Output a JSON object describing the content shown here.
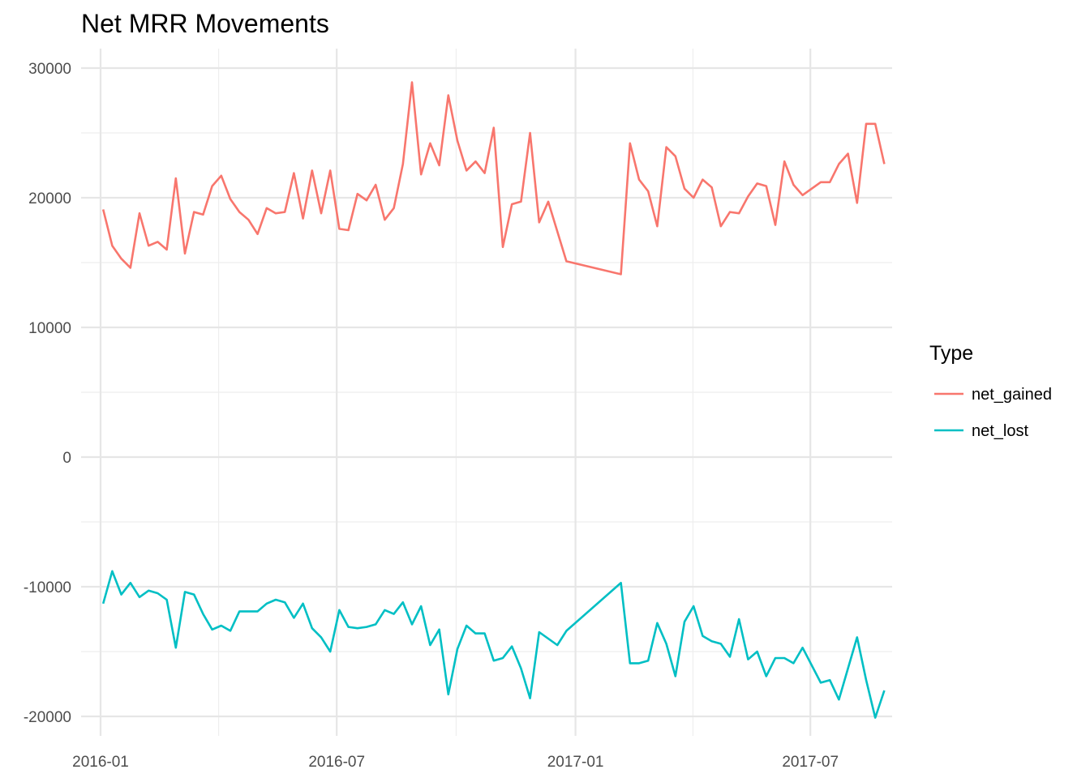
{
  "chart_data": {
    "type": "line",
    "title": "Net MRR Movements",
    "xlabel": "",
    "ylabel": "",
    "x_ticks": [
      "2016-01",
      "2016-07",
      "2017-01",
      "2017-07"
    ],
    "y_ticks": [
      30000,
      20000,
      10000,
      0,
      -10000,
      -20000
    ],
    "x_range": [
      "2015-12-17",
      "2017-09-02"
    ],
    "ylim": [
      -21500,
      31500
    ],
    "grid": true,
    "legend": {
      "title": "Type",
      "position": "right"
    },
    "colors": {
      "net_gained": "#F8766D",
      "net_lost": "#00BFC4"
    },
    "series": [
      {
        "name": "net_gained",
        "points": [
          [
            "2016-01-03",
            19100
          ],
          [
            "2016-01-10",
            16300
          ],
          [
            "2016-01-17",
            15300
          ],
          [
            "2016-01-24",
            14600
          ],
          [
            "2016-01-31",
            18800
          ],
          [
            "2016-02-07",
            16300
          ],
          [
            "2016-02-14",
            16600
          ],
          [
            "2016-02-21",
            16000
          ],
          [
            "2016-02-28",
            21500
          ],
          [
            "2016-03-06",
            15700
          ],
          [
            "2016-03-13",
            18900
          ],
          [
            "2016-03-20",
            18700
          ],
          [
            "2016-03-27",
            20900
          ],
          [
            "2016-04-03",
            21700
          ],
          [
            "2016-04-10",
            19900
          ],
          [
            "2016-04-17",
            18900
          ],
          [
            "2016-04-24",
            18300
          ],
          [
            "2016-05-01",
            17200
          ],
          [
            "2016-05-08",
            19200
          ],
          [
            "2016-05-15",
            18800
          ],
          [
            "2016-05-22",
            18900
          ],
          [
            "2016-05-29",
            21900
          ],
          [
            "2016-06-05",
            18400
          ],
          [
            "2016-06-12",
            22100
          ],
          [
            "2016-06-19",
            18800
          ],
          [
            "2016-06-26",
            22100
          ],
          [
            "2016-07-03",
            17600
          ],
          [
            "2016-07-10",
            17500
          ],
          [
            "2016-07-17",
            20300
          ],
          [
            "2016-07-24",
            19800
          ],
          [
            "2016-07-31",
            21000
          ],
          [
            "2016-08-07",
            18300
          ],
          [
            "2016-08-14",
            19200
          ],
          [
            "2016-08-21",
            22600
          ],
          [
            "2016-08-28",
            28900
          ],
          [
            "2016-09-04",
            21800
          ],
          [
            "2016-09-11",
            24200
          ],
          [
            "2016-09-18",
            22500
          ],
          [
            "2016-09-25",
            27900
          ],
          [
            "2016-10-02",
            24400
          ],
          [
            "2016-10-09",
            22100
          ],
          [
            "2016-10-16",
            22800
          ],
          [
            "2016-10-23",
            21900
          ],
          [
            "2016-10-30",
            25400
          ],
          [
            "2016-11-06",
            16200
          ],
          [
            "2016-11-13",
            19500
          ],
          [
            "2016-11-20",
            19700
          ],
          [
            "2016-11-27",
            25000
          ],
          [
            "2016-12-04",
            18100
          ],
          [
            "2016-12-11",
            19700
          ],
          [
            "2016-12-25",
            15100
          ],
          [
            "2017-02-05",
            14100
          ],
          [
            "2017-02-12",
            24200
          ],
          [
            "2017-02-19",
            21400
          ],
          [
            "2017-02-26",
            20500
          ],
          [
            "2017-03-05",
            17800
          ],
          [
            "2017-03-12",
            23900
          ],
          [
            "2017-03-19",
            23200
          ],
          [
            "2017-03-26",
            20700
          ],
          [
            "2017-04-02",
            20000
          ],
          [
            "2017-04-09",
            21400
          ],
          [
            "2017-04-16",
            20800
          ],
          [
            "2017-04-23",
            17800
          ],
          [
            "2017-04-30",
            18900
          ],
          [
            "2017-05-07",
            18800
          ],
          [
            "2017-05-14",
            20100
          ],
          [
            "2017-05-21",
            21100
          ],
          [
            "2017-05-28",
            20900
          ],
          [
            "2017-06-04",
            17900
          ],
          [
            "2017-06-11",
            22800
          ],
          [
            "2017-06-18",
            21000
          ],
          [
            "2017-06-25",
            20200
          ],
          [
            "2017-07-09",
            21200
          ],
          [
            "2017-07-16",
            21200
          ],
          [
            "2017-07-23",
            22600
          ],
          [
            "2017-07-30",
            23400
          ],
          [
            "2017-08-06",
            19600
          ],
          [
            "2017-08-13",
            25700
          ],
          [
            "2017-08-20",
            25700
          ],
          [
            "2017-08-27",
            22600
          ]
        ]
      },
      {
        "name": "net_lost",
        "points": [
          [
            "2016-01-03",
            -11300
          ],
          [
            "2016-01-10",
            -8800
          ],
          [
            "2016-01-17",
            -10600
          ],
          [
            "2016-01-24",
            -9700
          ],
          [
            "2016-01-31",
            -10800
          ],
          [
            "2016-02-07",
            -10300
          ],
          [
            "2016-02-14",
            -10500
          ],
          [
            "2016-02-21",
            -11000
          ],
          [
            "2016-02-28",
            -14700
          ],
          [
            "2016-03-06",
            -10400
          ],
          [
            "2016-03-13",
            -10600
          ],
          [
            "2016-03-20",
            -12100
          ],
          [
            "2016-03-27",
            -13300
          ],
          [
            "2016-04-03",
            -13000
          ],
          [
            "2016-04-10",
            -13400
          ],
          [
            "2016-04-17",
            -11900
          ],
          [
            "2016-04-24",
            -11900
          ],
          [
            "2016-05-01",
            -11900
          ],
          [
            "2016-05-08",
            -11300
          ],
          [
            "2016-05-15",
            -11000
          ],
          [
            "2016-05-22",
            -11200
          ],
          [
            "2016-05-29",
            -12400
          ],
          [
            "2016-06-05",
            -11300
          ],
          [
            "2016-06-12",
            -13200
          ],
          [
            "2016-06-19",
            -13900
          ],
          [
            "2016-06-26",
            -15000
          ],
          [
            "2016-07-03",
            -11800
          ],
          [
            "2016-07-10",
            -13100
          ],
          [
            "2016-07-17",
            -13200
          ],
          [
            "2016-07-24",
            -13100
          ],
          [
            "2016-07-31",
            -12900
          ],
          [
            "2016-08-07",
            -11800
          ],
          [
            "2016-08-14",
            -12100
          ],
          [
            "2016-08-21",
            -11200
          ],
          [
            "2016-08-28",
            -12900
          ],
          [
            "2016-09-04",
            -11500
          ],
          [
            "2016-09-11",
            -14500
          ],
          [
            "2016-09-18",
            -13300
          ],
          [
            "2016-09-25",
            -18300
          ],
          [
            "2016-10-02",
            -14800
          ],
          [
            "2016-10-09",
            -13000
          ],
          [
            "2016-10-16",
            -13600
          ],
          [
            "2016-10-23",
            -13600
          ],
          [
            "2016-10-30",
            -15700
          ],
          [
            "2016-11-06",
            -15500
          ],
          [
            "2016-11-13",
            -14600
          ],
          [
            "2016-11-20",
            -16300
          ],
          [
            "2016-11-27",
            -18600
          ],
          [
            "2016-12-04",
            -13500
          ],
          [
            "2016-12-11",
            -14000
          ],
          [
            "2016-12-18",
            -14500
          ],
          [
            "2016-12-25",
            -13400
          ],
          [
            "2017-02-05",
            -9700
          ],
          [
            "2017-02-12",
            -15900
          ],
          [
            "2017-02-19",
            -15900
          ],
          [
            "2017-02-26",
            -15700
          ],
          [
            "2017-03-05",
            -12800
          ],
          [
            "2017-03-12",
            -14400
          ],
          [
            "2017-03-19",
            -16900
          ],
          [
            "2017-03-26",
            -12700
          ],
          [
            "2017-04-02",
            -11500
          ],
          [
            "2017-04-09",
            -13800
          ],
          [
            "2017-04-16",
            -14200
          ],
          [
            "2017-04-23",
            -14400
          ],
          [
            "2017-04-30",
            -15400
          ],
          [
            "2017-05-07",
            -12500
          ],
          [
            "2017-05-14",
            -15600
          ],
          [
            "2017-05-21",
            -15000
          ],
          [
            "2017-05-28",
            -16900
          ],
          [
            "2017-06-04",
            -15500
          ],
          [
            "2017-06-11",
            -15500
          ],
          [
            "2017-06-18",
            -15900
          ],
          [
            "2017-06-25",
            -14700
          ],
          [
            "2017-07-09",
            -17400
          ],
          [
            "2017-07-16",
            -17200
          ],
          [
            "2017-07-23",
            -18700
          ],
          [
            "2017-07-30",
            -16300
          ],
          [
            "2017-08-06",
            -13900
          ],
          [
            "2017-08-13",
            -17200
          ],
          [
            "2017-08-20",
            -20100
          ],
          [
            "2017-08-27",
            -18000
          ]
        ]
      }
    ]
  }
}
